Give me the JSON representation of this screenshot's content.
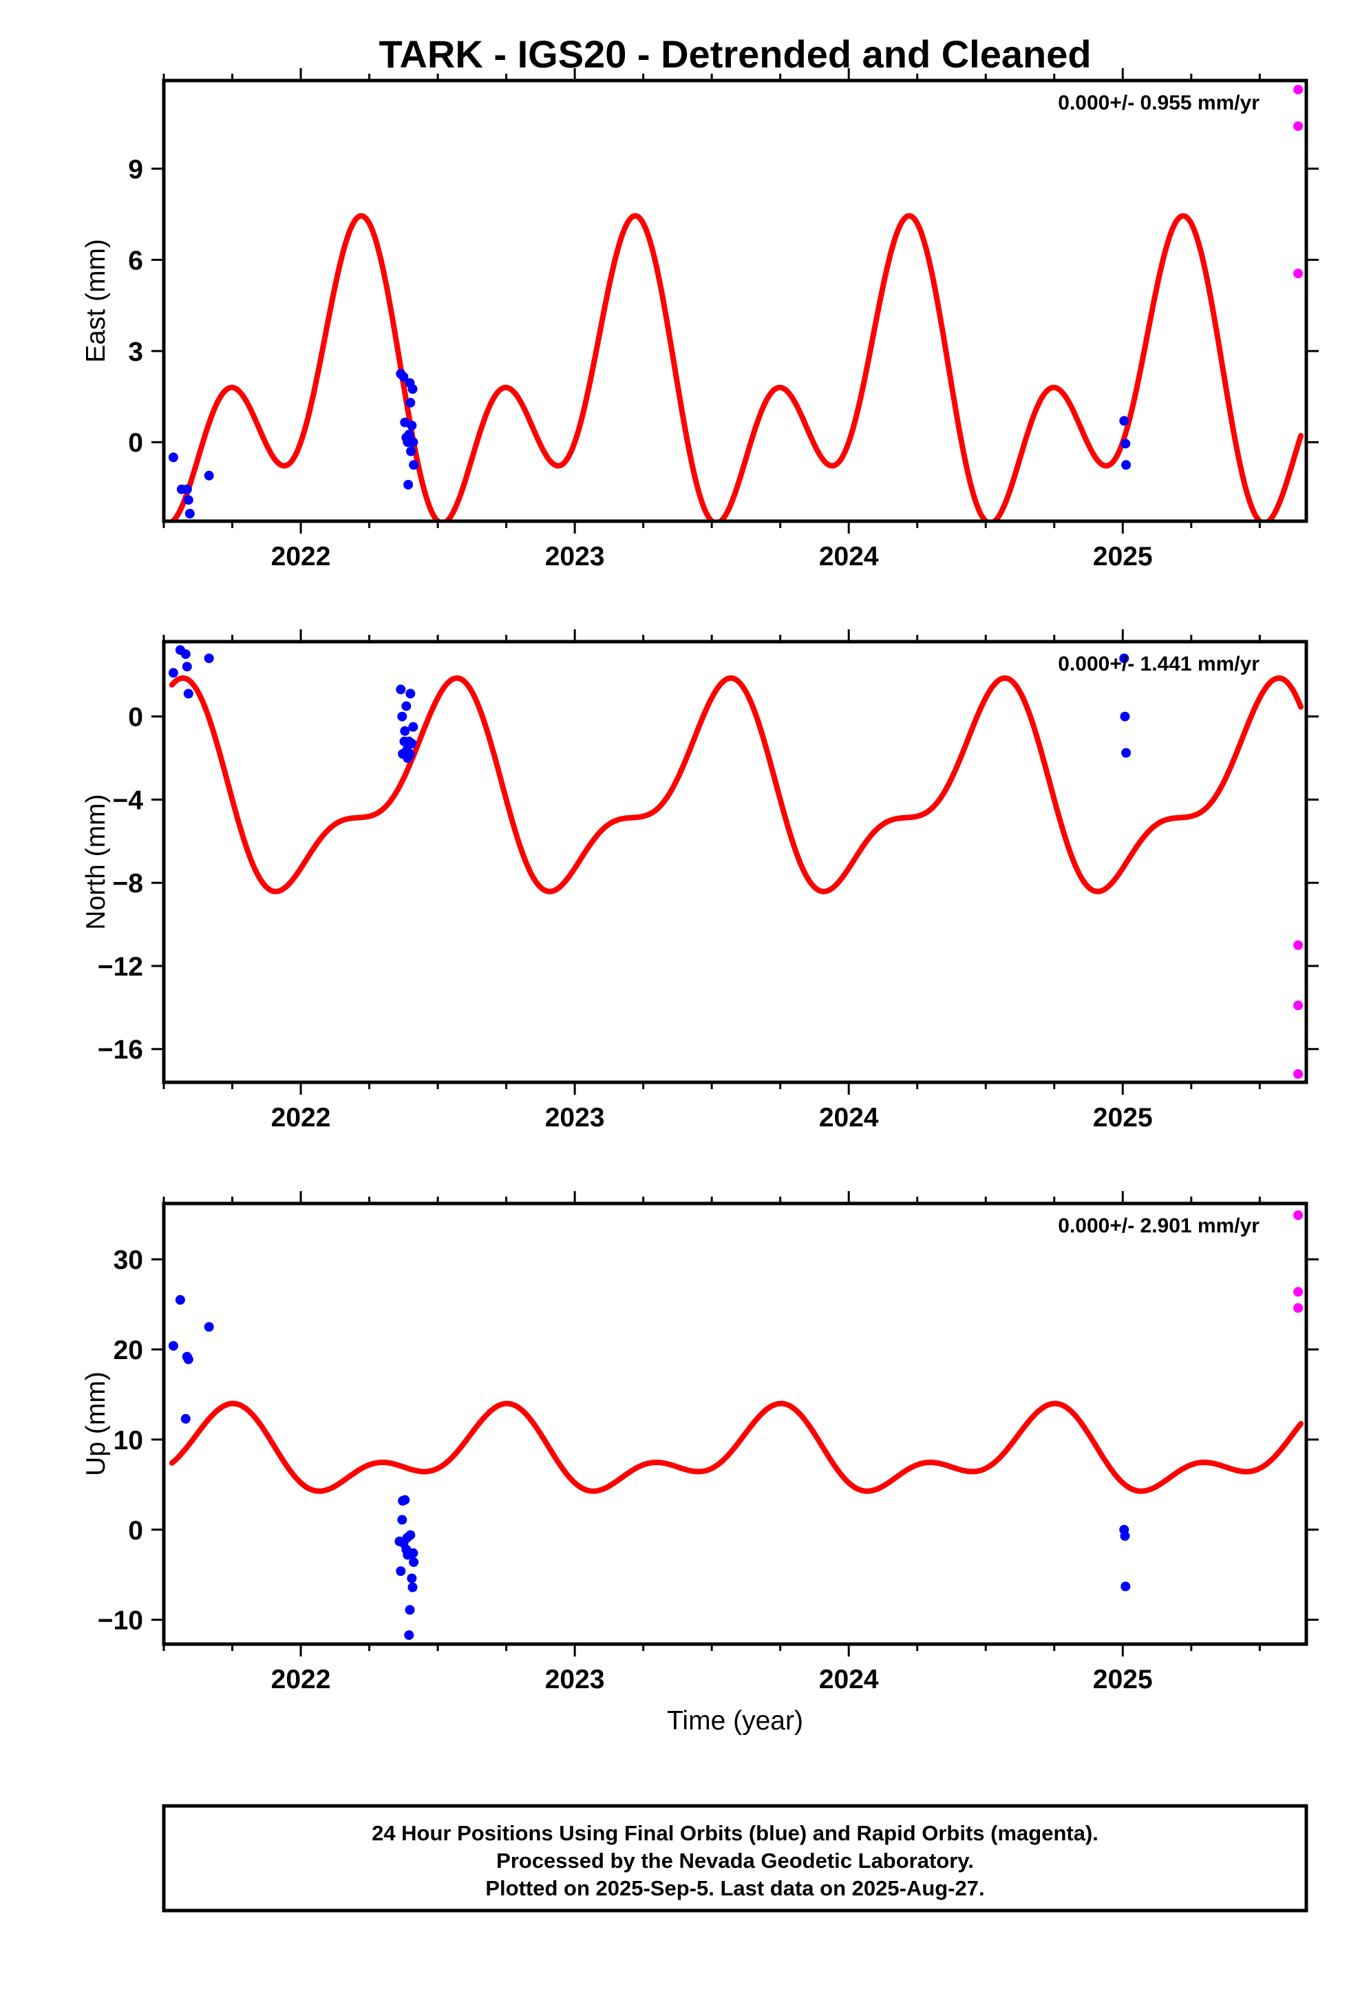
{
  "title": "TARK - IGS20 - Detrended and Cleaned",
  "footer": {
    "lines": [
      "24 Hour Positions Using Final Orbits (blue) and Rapid Orbits (magenta).",
      "Processed by the Nevada Geodetic Laboratory.",
      "Plotted on 2025-Sep-5. Last data on 2025-Aug-27."
    ]
  },
  "colors": {
    "final_orbits": "#0000ff",
    "rapid_orbits": "#ff00ff",
    "model_curve": "#ff0000"
  },
  "chart_data": [
    {
      "type": "scatter",
      "ylabel": "East (mm)",
      "xlabel": "",
      "rate_text": "0.000+/- 0.955 mm/yr",
      "xlim": [
        2021.5,
        2025.67
      ],
      "ylim": [
        -2.6,
        11.9
      ],
      "x_ticks": [
        2022,
        2023,
        2024,
        2025
      ],
      "x_tick_labels": [
        "2022",
        "2023",
        "2024",
        "2025"
      ],
      "y_ticks": [
        0,
        3,
        6,
        9
      ],
      "y_tick_labels": [
        "0",
        "3",
        "6",
        "9"
      ],
      "model": {
        "name": "",
        "offset": 1.6,
        "annual": [
          1.3,
          2.7
        ],
        "semiannual": [
          -2.9,
          0.7
        ],
        "x_range": [
          2021.53,
          2025.65
        ]
      },
      "series": [
        {
          "name": "",
          "orbit": "final",
          "points": [
            [
              2021.535,
              -0.5
            ],
            [
              2021.565,
              -1.55
            ],
            [
              2021.585,
              -1.55
            ],
            [
              2021.59,
              -1.9
            ],
            [
              2021.595,
              -2.35
            ],
            [
              2021.665,
              -1.1
            ],
            [
              2022.365,
              2.25
            ],
            [
              2022.375,
              2.15
            ],
            [
              2022.38,
              0.65
            ],
            [
              2022.385,
              0.15
            ],
            [
              2022.39,
              0.0
            ],
            [
              2022.392,
              -1.4
            ],
            [
              2022.395,
              0.25
            ],
            [
              2022.398,
              1.95
            ],
            [
              2022.4,
              1.3
            ],
            [
              2022.402,
              -0.3
            ],
            [
              2022.405,
              0.55
            ],
            [
              2022.408,
              1.75
            ],
            [
              2022.41,
              0.0
            ],
            [
              2022.412,
              -0.75
            ],
            [
              2025.005,
              0.7
            ],
            [
              2025.01,
              -0.05
            ],
            [
              2025.012,
              -0.75
            ]
          ]
        },
        {
          "name": "",
          "orbit": "rapid",
          "points": [
            [
              2025.64,
              11.6
            ],
            [
              2025.64,
              10.4
            ],
            [
              2025.64,
              5.55
            ]
          ]
        }
      ]
    },
    {
      "type": "scatter",
      "ylabel": "North (mm)",
      "xlabel": "",
      "rate_text": "0.000+/- 1.441 mm/yr",
      "xlim": [
        2021.5,
        2025.67
      ],
      "ylim": [
        -17.6,
        3.6
      ],
      "x_ticks": [
        2022,
        2023,
        2024,
        2025
      ],
      "x_tick_labels": [
        "2022",
        "2023",
        "2024",
        "2025"
      ],
      "y_ticks": [
        0,
        -4,
        -8,
        -12,
        -16
      ],
      "y_tick_labels": [
        "0",
        "−4",
        "−8",
        "−12",
        "−16"
      ],
      "model": {
        "name": "",
        "offset": -3.8,
        "annual": [
          -4.1,
          -0.4
        ],
        "semiannual": [
          0.6,
          1.8
        ],
        "x_range": [
          2021.53,
          2025.65
        ]
      },
      "series": [
        {
          "name": "",
          "orbit": "final",
          "points": [
            [
              2021.535,
              2.1
            ],
            [
              2021.56,
              3.2
            ],
            [
              2021.58,
              3.0
            ],
            [
              2021.585,
              2.4
            ],
            [
              2021.59,
              1.1
            ],
            [
              2021.665,
              2.8
            ],
            [
              2022.365,
              1.3
            ],
            [
              2022.37,
              0.0
            ],
            [
              2022.372,
              -1.8
            ],
            [
              2022.378,
              -1.2
            ],
            [
              2022.38,
              -0.7
            ],
            [
              2022.385,
              0.5
            ],
            [
              2022.388,
              -1.6
            ],
            [
              2022.39,
              -2.0
            ],
            [
              2022.395,
              -1.2
            ],
            [
              2022.398,
              -1.8
            ],
            [
              2022.4,
              1.1
            ],
            [
              2022.405,
              -1.3
            ],
            [
              2022.41,
              -0.5
            ],
            [
              2025.005,
              2.8
            ],
            [
              2025.008,
              0.0
            ],
            [
              2025.012,
              -1.75
            ]
          ]
        },
        {
          "name": "",
          "orbit": "rapid",
          "points": [
            [
              2025.64,
              -11.0
            ],
            [
              2025.64,
              -13.9
            ],
            [
              2025.64,
              -17.2
            ]
          ]
        }
      ]
    },
    {
      "type": "scatter",
      "ylabel": "Up (mm)",
      "xlabel": "Time (year)",
      "rate_text": "0.000+/- 2.901 mm/yr",
      "xlim": [
        2021.5,
        2025.67
      ],
      "ylim": [
        -12.7,
        36.2
      ],
      "x_ticks": [
        2022,
        2023,
        2024,
        2025
      ],
      "x_tick_labels": [
        "2022",
        "2023",
        "2024",
        "2025"
      ],
      "y_ticks": [
        -10,
        0,
        10,
        20,
        30
      ],
      "y_tick_labels": [
        "−10",
        "0",
        "10",
        "20",
        "30"
      ],
      "model": {
        "name": "",
        "offset": 8.3,
        "annual": [
          -0.8,
          -3.4
        ],
        "semiannual": [
          -2.3,
          -0.5
        ],
        "x_range": [
          2021.53,
          2025.65
        ]
      },
      "series": [
        {
          "name": "",
          "orbit": "final",
          "points": [
            [
              2021.535,
              20.4
            ],
            [
              2021.56,
              25.5
            ],
            [
              2021.58,
              12.3
            ],
            [
              2021.585,
              19.2
            ],
            [
              2021.59,
              18.9
            ],
            [
              2021.665,
              22.5
            ],
            [
              2022.36,
              -1.3
            ],
            [
              2022.365,
              -4.6
            ],
            [
              2022.37,
              1.1
            ],
            [
              2022.372,
              3.2
            ],
            [
              2022.375,
              -1.5
            ],
            [
              2022.38,
              3.3
            ],
            [
              2022.385,
              -2.2
            ],
            [
              2022.388,
              -0.9
            ],
            [
              2022.39,
              -2.8
            ],
            [
              2022.395,
              -11.7
            ],
            [
              2022.398,
              -8.9
            ],
            [
              2022.4,
              -0.6
            ],
            [
              2022.405,
              -5.4
            ],
            [
              2022.408,
              -6.4
            ],
            [
              2022.41,
              -2.6
            ],
            [
              2022.412,
              -3.6
            ],
            [
              2025.005,
              0.0
            ],
            [
              2025.008,
              -0.7
            ],
            [
              2025.01,
              -6.3
            ]
          ]
        },
        {
          "name": "",
          "orbit": "rapid",
          "points": [
            [
              2025.64,
              34.9
            ],
            [
              2025.64,
              26.4
            ],
            [
              2025.64,
              24.6
            ]
          ]
        }
      ]
    }
  ]
}
